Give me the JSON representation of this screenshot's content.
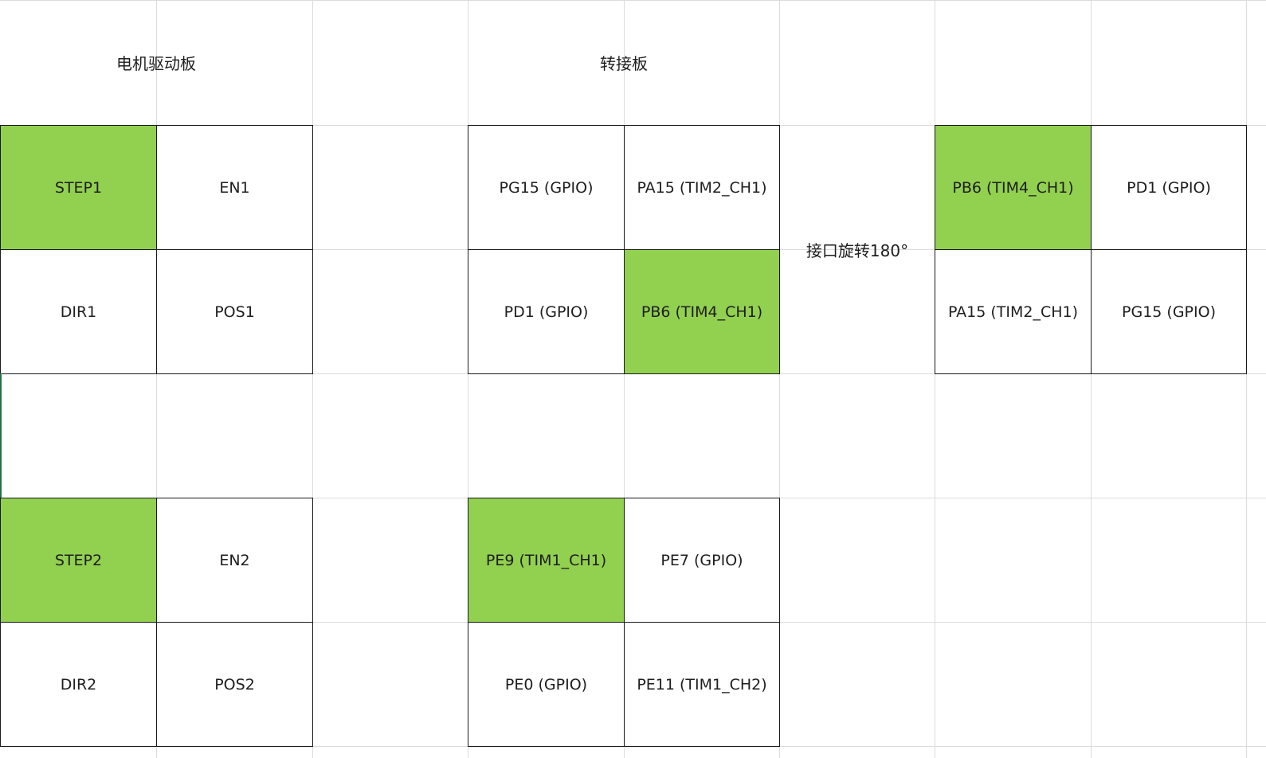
{
  "sheet": {
    "headers": {
      "motor_board": "电机驱动板",
      "adapter_board": "转接板",
      "rotate_note": "接口旋转180°"
    },
    "motor_block_1": {
      "step": "STEP1",
      "en": "EN1",
      "dir": "DIR1",
      "pos": "POS1"
    },
    "adapter_block_1": {
      "r1c1": "PG15 (GPIO)",
      "r1c2": "PA15 (TIM2_CH1)",
      "r2c1": "PD1 (GPIO)",
      "r2c2": "PB6 (TIM4_CH1)"
    },
    "rotated_block_1": {
      "r1c1": "PB6 (TIM4_CH1)",
      "r1c2": "PD1 (GPIO)",
      "r2c1": "PA15 (TIM2_CH1)",
      "r2c2": "PG15 (GPIO)"
    },
    "motor_block_2": {
      "step": "STEP2",
      "en": "EN2",
      "dir": "DIR2",
      "pos": "POS2"
    },
    "adapter_block_2": {
      "r1c1": "PE9 (TIM1_CH1)",
      "r1c2": "PE7 (GPIO)",
      "r2c1": "PE0 (GPIO)",
      "r2c2": "PE11 (TIM1_CH2)"
    }
  },
  "colors": {
    "highlight_green": "#92d050",
    "gridline": "#dcdcdc",
    "border": "#1a1a1a",
    "selection": "#217346"
  }
}
